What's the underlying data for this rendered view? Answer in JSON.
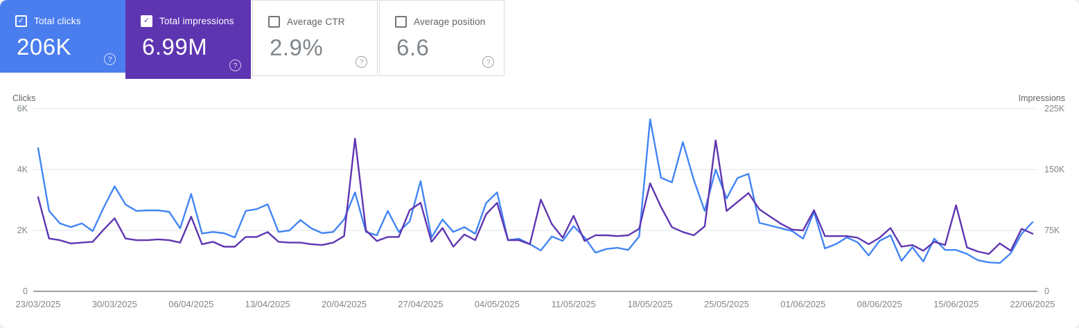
{
  "cards": [
    {
      "label": "Total clicks",
      "value": "206K",
      "checked": true
    },
    {
      "label": "Total impressions",
      "value": "6.99M",
      "checked": true
    },
    {
      "label": "Average CTR",
      "value": "2.9%",
      "checked": false
    },
    {
      "label": "Average position",
      "value": "6.6",
      "checked": false
    }
  ],
  "icons": {
    "check_glyph": "✓",
    "help_glyph": "?"
  },
  "colors": {
    "clicks_card": "#4a7dee",
    "impressions_card": "#5e35b1",
    "clicks_line": "#4285f4",
    "impressions_line": "#5e35b1",
    "grid": "#ecedef",
    "baseline": "#9aa0a6",
    "tick_text": "#80868b"
  },
  "chart_data": {
    "type": "line",
    "left_axis": {
      "title": "Clicks",
      "ticks": [
        "0",
        "2K",
        "4K",
        "6K"
      ],
      "max": 6000
    },
    "right_axis": {
      "title": "Impressions",
      "ticks": [
        "0",
        "75K",
        "150K",
        "225K"
      ],
      "max": 225000
    },
    "x_start": "23/03/2025",
    "x_end": "22/06/2025",
    "x_tick_labels": [
      "23/03/2025",
      "30/03/2025",
      "06/04/2025",
      "13/04/2025",
      "20/04/2025",
      "27/04/2025",
      "04/05/2025",
      "11/05/2025",
      "18/05/2025",
      "25/05/2025",
      "01/06/2025",
      "08/06/2025",
      "15/06/2025",
      "22/06/2025"
    ],
    "grid": "horizontal-only",
    "legend": "none",
    "series": [
      {
        "name": "Total clicks",
        "axis": "left",
        "color": "#4285f4",
        "values": [
          4700,
          2640,
          2230,
          2110,
          2230,
          1980,
          2750,
          3450,
          2850,
          2640,
          2660,
          2660,
          2610,
          2070,
          3200,
          1900,
          1950,
          1910,
          1770,
          2640,
          2700,
          2860,
          1950,
          2000,
          2340,
          2070,
          1910,
          1950,
          2360,
          3250,
          1950,
          1840,
          2640,
          1950,
          2300,
          3620,
          1770,
          2360,
          1950,
          2110,
          1890,
          2900,
          3250,
          1680,
          1730,
          1550,
          1340,
          1800,
          1660,
          2140,
          1770,
          1270,
          1390,
          1430,
          1360,
          1800,
          5650,
          3730,
          3580,
          4900,
          3660,
          2640,
          4000,
          3050,
          3720,
          3860,
          2250,
          2160,
          2070,
          1980,
          1730,
          2610,
          1410,
          1550,
          1770,
          1610,
          1180,
          1660,
          1840,
          1000,
          1450,
          980,
          1730,
          1360,
          1360,
          1230,
          1020,
          950,
          930,
          1250,
          1890,
          2270
        ]
      },
      {
        "name": "Total impressions",
        "axis": "right",
        "color": "#5e35b1",
        "values": [
          116000,
          65000,
          63000,
          59000,
          60000,
          61000,
          76000,
          90000,
          65000,
          63000,
          63000,
          64000,
          63000,
          60000,
          92000,
          58000,
          61000,
          55000,
          55000,
          67000,
          67000,
          73000,
          61000,
          60000,
          60000,
          58000,
          57000,
          60000,
          68000,
          188000,
          75000,
          62000,
          67000,
          67000,
          100000,
          109000,
          61000,
          78000,
          55000,
          70000,
          63000,
          95000,
          109000,
          63000,
          63000,
          58000,
          113000,
          83000,
          66000,
          93000,
          62000,
          69000,
          69000,
          68000,
          69000,
          77000,
          133000,
          104000,
          79000,
          73000,
          69000,
          80000,
          186000,
          99000,
          110000,
          121000,
          101000,
          92000,
          83000,
          76000,
          75000,
          100000,
          68000,
          68000,
          68000,
          66000,
          58000,
          66000,
          78000,
          55000,
          57000,
          50000,
          61000,
          57000,
          106000,
          54000,
          49000,
          46000,
          59000,
          50000,
          77000,
          71000
        ]
      }
    ]
  }
}
